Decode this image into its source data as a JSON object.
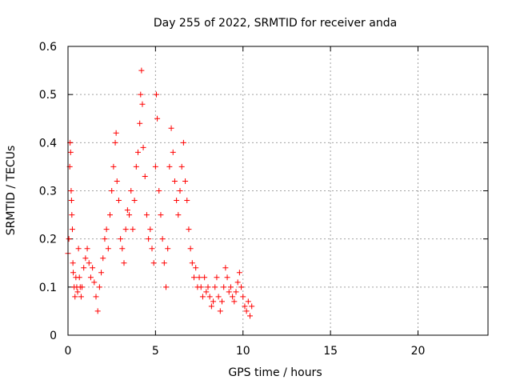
{
  "chart_data": {
    "type": "scatter",
    "title": "Day 255 of 2022, SRMTID for receiver anda",
    "xlabel": "GPS time / hours",
    "ylabel": "SRMTID / TECUs",
    "xlim": [
      0,
      24
    ],
    "ylim": [
      0,
      0.6
    ],
    "xticks": [
      0,
      5,
      10,
      15,
      20
    ],
    "xtick_labels": [
      "0",
      "5",
      "10",
      "15",
      "20"
    ],
    "yticks": [
      0,
      0.1,
      0.2,
      0.3,
      0.4,
      0.5,
      0.6
    ],
    "ytick_labels": [
      "0",
      "0.1",
      "0.2",
      "0.3",
      "0.4",
      "0.5",
      "0.6"
    ],
    "grid": true,
    "marker": "+",
    "color": "#ff0000",
    "series": [
      {
        "name": "SRMTID",
        "x": [
          0.0,
          0.05,
          0.1,
          0.12,
          0.15,
          0.18,
          0.2,
          0.22,
          0.25,
          0.28,
          0.3,
          0.35,
          0.4,
          0.45,
          0.5,
          0.55,
          0.6,
          0.65,
          0.7,
          0.75,
          0.8,
          0.9,
          1.0,
          1.1,
          1.2,
          1.3,
          1.4,
          1.5,
          1.6,
          1.7,
          1.8,
          1.9,
          2.0,
          2.1,
          2.2,
          2.3,
          2.4,
          2.5,
          2.6,
          2.7,
          2.75,
          2.8,
          2.9,
          3.0,
          3.1,
          3.2,
          3.3,
          3.4,
          3.5,
          3.6,
          3.7,
          3.8,
          3.9,
          4.0,
          4.1,
          4.15,
          4.2,
          4.25,
          4.3,
          4.4,
          4.5,
          4.6,
          4.7,
          4.8,
          4.9,
          5.0,
          5.05,
          5.1,
          5.2,
          5.3,
          5.4,
          5.5,
          5.6,
          5.7,
          5.8,
          5.9,
          6.0,
          6.1,
          6.2,
          6.3,
          6.4,
          6.5,
          6.6,
          6.7,
          6.8,
          6.9,
          7.0,
          7.1,
          7.2,
          7.3,
          7.4,
          7.5,
          7.6,
          7.7,
          7.8,
          7.9,
          8.0,
          8.1,
          8.2,
          8.3,
          8.4,
          8.5,
          8.6,
          8.7,
          8.8,
          8.9,
          9.0,
          9.1,
          9.2,
          9.3,
          9.4,
          9.5,
          9.6,
          9.7,
          9.8,
          9.9,
          10.0,
          10.1,
          10.2,
          10.3,
          10.4,
          10.5
        ],
        "y": [
          0.17,
          0.2,
          0.35,
          0.4,
          0.38,
          0.3,
          0.28,
          0.25,
          0.22,
          0.15,
          0.13,
          0.1,
          0.08,
          0.12,
          0.1,
          0.09,
          0.18,
          0.12,
          0.1,
          0.08,
          0.1,
          0.14,
          0.16,
          0.18,
          0.15,
          0.12,
          0.14,
          0.11,
          0.08,
          0.05,
          0.1,
          0.13,
          0.16,
          0.2,
          0.22,
          0.18,
          0.25,
          0.3,
          0.35,
          0.4,
          0.42,
          0.32,
          0.28,
          0.2,
          0.18,
          0.15,
          0.22,
          0.26,
          0.25,
          0.3,
          0.22,
          0.28,
          0.35,
          0.38,
          0.44,
          0.5,
          0.55,
          0.48,
          0.39,
          0.33,
          0.25,
          0.2,
          0.22,
          0.18,
          0.15,
          0.35,
          0.5,
          0.45,
          0.3,
          0.25,
          0.2,
          0.15,
          0.1,
          0.18,
          0.35,
          0.43,
          0.38,
          0.32,
          0.28,
          0.25,
          0.3,
          0.35,
          0.4,
          0.32,
          0.28,
          0.22,
          0.18,
          0.15,
          0.12,
          0.14,
          0.1,
          0.12,
          0.1,
          0.08,
          0.12,
          0.09,
          0.1,
          0.08,
          0.06,
          0.07,
          0.1,
          0.12,
          0.08,
          0.05,
          0.07,
          0.1,
          0.14,
          0.12,
          0.09,
          0.1,
          0.08,
          0.07,
          0.09,
          0.11,
          0.13,
          0.1,
          0.08,
          0.06,
          0.05,
          0.07,
          0.04,
          0.06
        ]
      }
    ]
  }
}
